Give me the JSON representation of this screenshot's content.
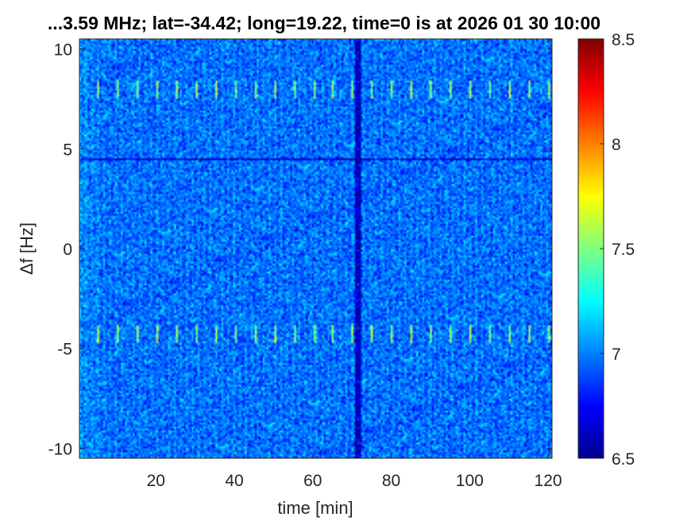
{
  "chart_data": {
    "type": "heatmap",
    "title": "...3.59 MHz;  lat=-34.42; long=19.22, time=0 is at 2026 01 30 10:00",
    "xlabel": "time [min]",
    "ylabel": "Δf [Hz]",
    "xlim": [
      0.5,
      121
    ],
    "ylim": [
      -10.5,
      10.5
    ],
    "x_ticks": [
      20,
      40,
      60,
      80,
      100,
      120
    ],
    "x_tick_labels": [
      "20",
      "40",
      "60",
      "80",
      "100",
      "120"
    ],
    "y_ticks": [
      -10,
      -5,
      0,
      5,
      10
    ],
    "y_tick_labels": [
      "-10",
      "-5",
      "0",
      "5",
      "10"
    ],
    "colormap": "jet",
    "clim": [
      6.5,
      8.5
    ],
    "colorbar_ticks": [
      6.5,
      7,
      7.5,
      8,
      8.5
    ],
    "colorbar_tick_labels": [
      "6.5",
      "7",
      "7.5",
      "8",
      "8.5"
    ],
    "background_level_approx": 7.0,
    "features": {
      "low_column_time_min": 71.5,
      "low_row_df_hz": 4.5,
      "periodic_spike_df_hz": [
        8.0,
        -4.3
      ],
      "periodic_spike_interval_min": 5
    }
  }
}
